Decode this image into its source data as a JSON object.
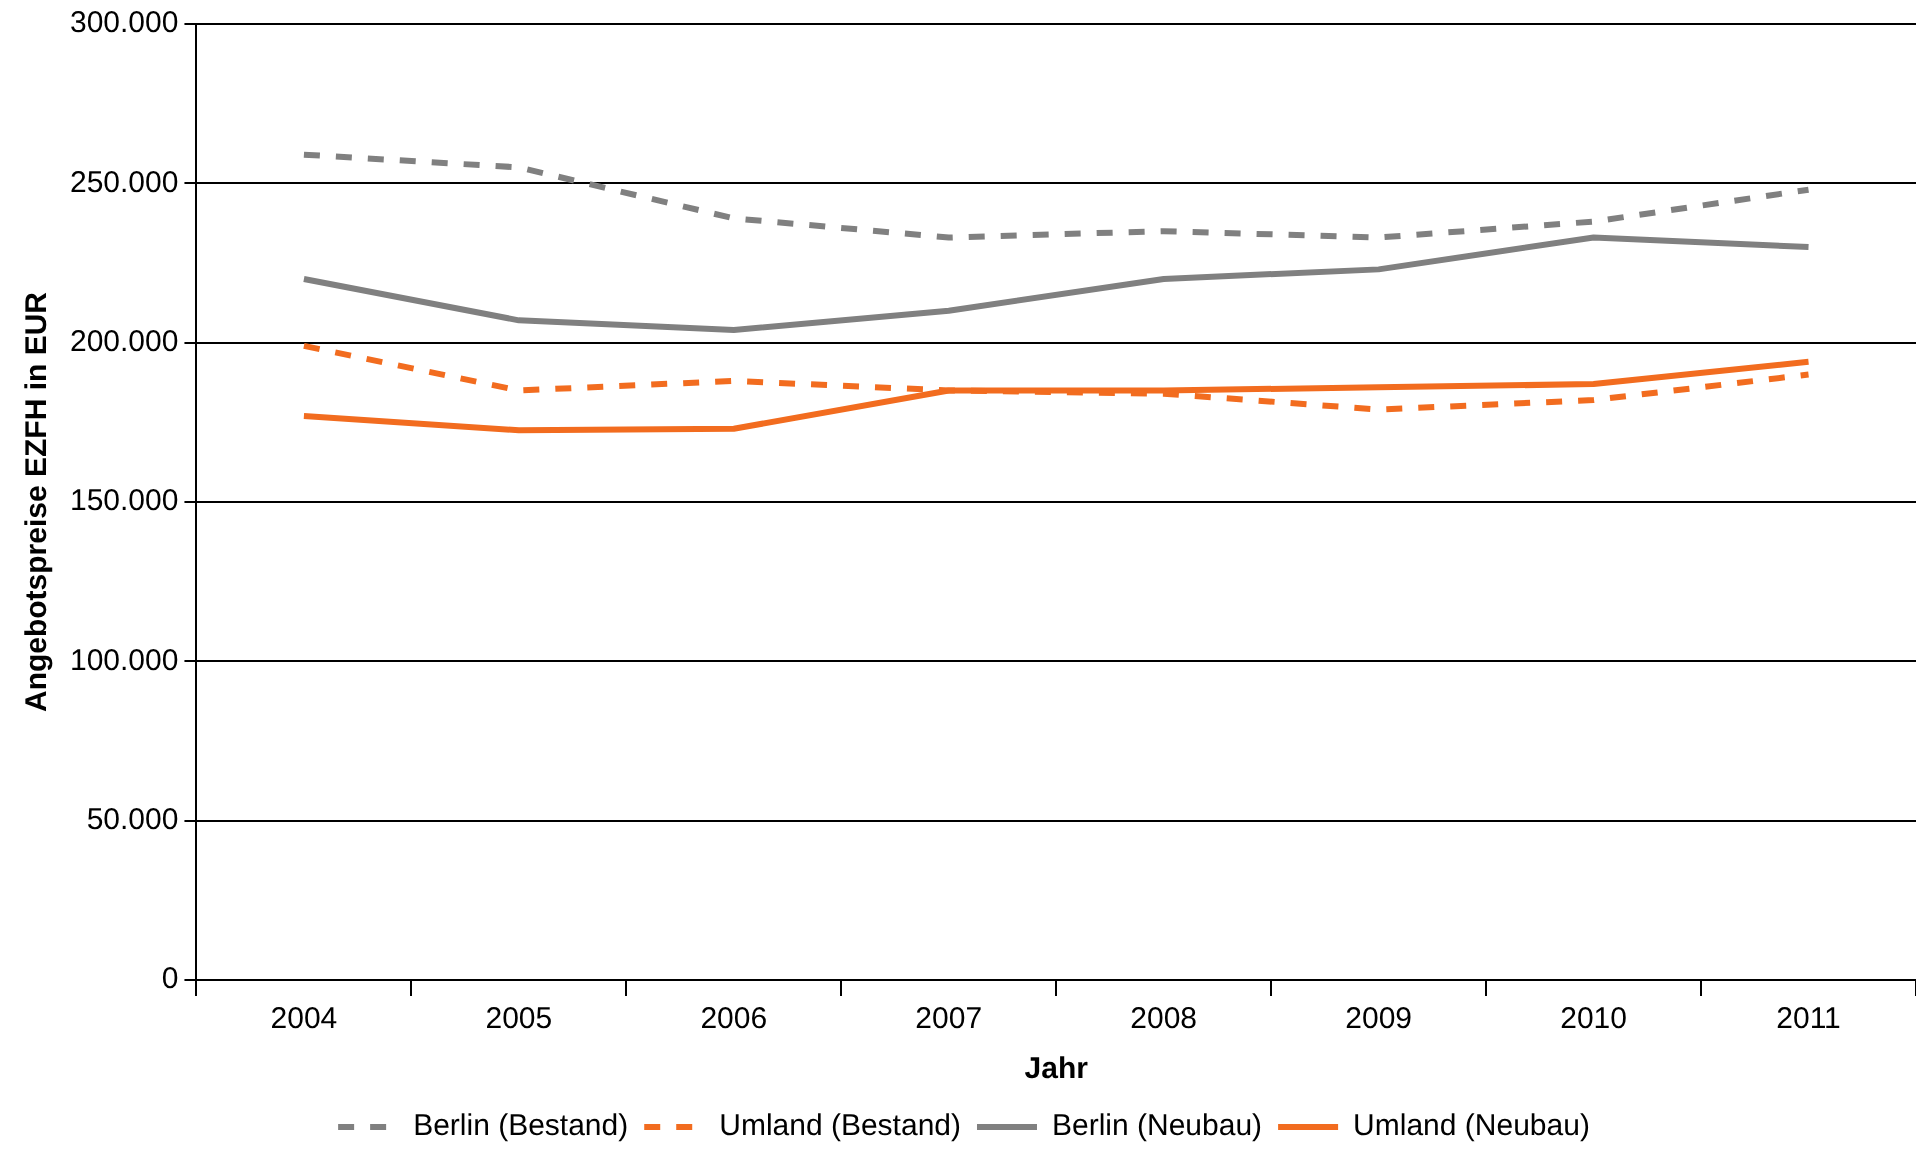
{
  "chart_data": {
    "type": "line",
    "xlabel": "Jahr",
    "ylabel": "Angebotspreise EZFH in EUR",
    "categories": [
      "2004",
      "2005",
      "2006",
      "2007",
      "2008",
      "2009",
      "2010",
      "2011"
    ],
    "series": [
      {
        "name": "Berlin (Bestand)",
        "color": "#808080",
        "line_style": "dashed",
        "values": [
          259000,
          255000,
          239000,
          233000,
          235000,
          233000,
          238000,
          248000
        ]
      },
      {
        "name": "Umland (Bestand)",
        "color": "#f26c1f",
        "line_style": "dashed",
        "values": [
          199000,
          185000,
          188000,
          185000,
          184000,
          179000,
          182000,
          190000
        ]
      },
      {
        "name": "Berlin (Neubau)",
        "color": "#808080",
        "line_style": "solid",
        "values": [
          220000,
          207000,
          204000,
          210000,
          220000,
          223000,
          233000,
          230000
        ]
      },
      {
        "name": "Umland (Neubau)",
        "color": "#f26c1f",
        "line_style": "solid",
        "values": [
          177000,
          172500,
          173000,
          185000,
          185000,
          186000,
          187000,
          194000
        ]
      }
    ],
    "ylim": [
      0,
      300000
    ],
    "yticks": [
      {
        "value": 0,
        "label": "0"
      },
      {
        "value": 50000,
        "label": "50.000"
      },
      {
        "value": 100000,
        "label": "100.000"
      },
      {
        "value": 150000,
        "label": "150.000"
      },
      {
        "value": 200000,
        "label": "200.000"
      },
      {
        "value": 250000,
        "label": "250.000"
      },
      {
        "value": 300000,
        "label": "300.000"
      }
    ],
    "grid": "y",
    "legend": "bottom",
    "marker": "none"
  }
}
